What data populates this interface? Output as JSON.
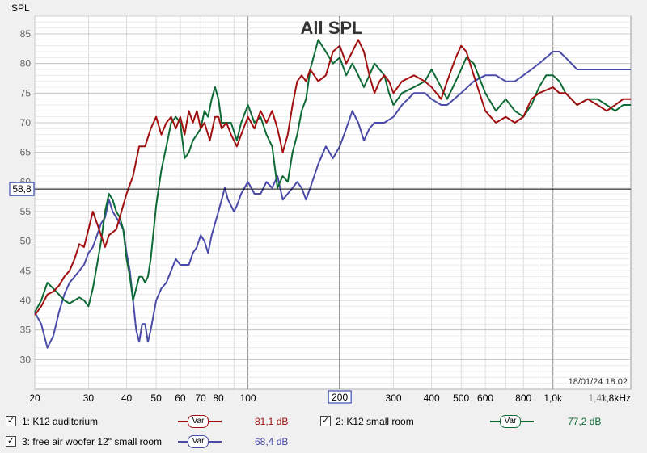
{
  "chart_data": {
    "type": "line",
    "title": "All SPL",
    "ylabel": "SPL",
    "xscale": "log",
    "xlim": [
      20,
      1800
    ],
    "ylim": [
      25,
      88
    ],
    "grid": true,
    "x_ticks": [
      {
        "v": 20,
        "label": "20"
      },
      {
        "v": 30,
        "label": "30"
      },
      {
        "v": 40,
        "label": "40"
      },
      {
        "v": 50,
        "label": "50"
      },
      {
        "v": 60,
        "label": "60"
      },
      {
        "v": 70,
        "label": "70"
      },
      {
        "v": 80,
        "label": "80"
      },
      {
        "v": 100,
        "label": "100"
      },
      {
        "v": 300,
        "label": "300"
      },
      {
        "v": 400,
        "label": "400"
      },
      {
        "v": 500,
        "label": "500"
      },
      {
        "v": 600,
        "label": "600"
      },
      {
        "v": 800,
        "label": "800"
      },
      {
        "v": 1000,
        "label": "1,0k"
      },
      {
        "v": 1400,
        "label": "1,4k",
        "muted": true
      },
      {
        "v": 1800,
        "label": "1,8kHz"
      }
    ],
    "y_ticks": [
      30,
      35,
      40,
      45,
      50,
      55,
      60,
      65,
      70,
      75,
      80,
      85
    ],
    "cursor": {
      "x": 200,
      "x_label": "200",
      "y": 58.8,
      "y_label": "58,8"
    },
    "timestamp": "18/01/24 18.02",
    "series": [
      {
        "name": "1: K12 auditorium",
        "color": "#a01010",
        "level": "81,1 dB",
        "points": [
          [
            20,
            37.5
          ],
          [
            21,
            39
          ],
          [
            22,
            41
          ],
          [
            23,
            41.5
          ],
          [
            24,
            42.5
          ],
          [
            25,
            44
          ],
          [
            26,
            45
          ],
          [
            27,
            47
          ],
          [
            28,
            49.5
          ],
          [
            29,
            49
          ],
          [
            30,
            52
          ],
          [
            31,
            55
          ],
          [
            32,
            53
          ],
          [
            33,
            51
          ],
          [
            34,
            49
          ],
          [
            35,
            51
          ],
          [
            37,
            52
          ],
          [
            40,
            58
          ],
          [
            42,
            61
          ],
          [
            44,
            66
          ],
          [
            46,
            66
          ],
          [
            48,
            69
          ],
          [
            50,
            71
          ],
          [
            52,
            68
          ],
          [
            54,
            70
          ],
          [
            56,
            71
          ],
          [
            58,
            69
          ],
          [
            60,
            71
          ],
          [
            62,
            68
          ],
          [
            64,
            72
          ],
          [
            66,
            70
          ],
          [
            68,
            72
          ],
          [
            70,
            69
          ],
          [
            72,
            70
          ],
          [
            75,
            67
          ],
          [
            78,
            71
          ],
          [
            80,
            71
          ],
          [
            82,
            69
          ],
          [
            85,
            70
          ],
          [
            88,
            68
          ],
          [
            92,
            66
          ],
          [
            95,
            68
          ],
          [
            100,
            71
          ],
          [
            105,
            69
          ],
          [
            110,
            72
          ],
          [
            115,
            70
          ],
          [
            120,
            72
          ],
          [
            125,
            69
          ],
          [
            130,
            65
          ],
          [
            135,
            68
          ],
          [
            140,
            73
          ],
          [
            145,
            77
          ],
          [
            150,
            78
          ],
          [
            155,
            77
          ],
          [
            160,
            79
          ],
          [
            170,
            77
          ],
          [
            180,
            78
          ],
          [
            190,
            82
          ],
          [
            200,
            83
          ],
          [
            210,
            80
          ],
          [
            220,
            82
          ],
          [
            230,
            84
          ],
          [
            240,
            82
          ],
          [
            250,
            78
          ],
          [
            260,
            75
          ],
          [
            270,
            77
          ],
          [
            280,
            78
          ],
          [
            290,
            77
          ],
          [
            300,
            75
          ],
          [
            320,
            77
          ],
          [
            350,
            78
          ],
          [
            380,
            77
          ],
          [
            400,
            76
          ],
          [
            430,
            74
          ],
          [
            450,
            77
          ],
          [
            480,
            81
          ],
          [
            500,
            83
          ],
          [
            520,
            82
          ],
          [
            550,
            78
          ],
          [
            600,
            72
          ],
          [
            650,
            70
          ],
          [
            700,
            71
          ],
          [
            750,
            70
          ],
          [
            800,
            71
          ],
          [
            850,
            74
          ],
          [
            900,
            75
          ],
          [
            1000,
            76
          ],
          [
            1050,
            75
          ],
          [
            1100,
            75
          ],
          [
            1200,
            73
          ],
          [
            1300,
            74
          ],
          [
            1400,
            73
          ],
          [
            1500,
            72
          ],
          [
            1600,
            73
          ],
          [
            1700,
            74
          ],
          [
            1800,
            74
          ]
        ]
      },
      {
        "name": "2: K12 small room",
        "color": "#0d6a35",
        "level": "77,2 dB",
        "points": [
          [
            20,
            38
          ],
          [
            21,
            40
          ],
          [
            22,
            43
          ],
          [
            23,
            42
          ],
          [
            24,
            41
          ],
          [
            25,
            40
          ],
          [
            26,
            39.5
          ],
          [
            27,
            40
          ],
          [
            28,
            40.5
          ],
          [
            29,
            40
          ],
          [
            30,
            39
          ],
          [
            31,
            42
          ],
          [
            32,
            46
          ],
          [
            33,
            50
          ],
          [
            34,
            55
          ],
          [
            35,
            58
          ],
          [
            36,
            57
          ],
          [
            37,
            55
          ],
          [
            38,
            54
          ],
          [
            39,
            52
          ],
          [
            40,
            47
          ],
          [
            41,
            44
          ],
          [
            42,
            40
          ],
          [
            43,
            42
          ],
          [
            44,
            44
          ],
          [
            45,
            44
          ],
          [
            46,
            43
          ],
          [
            47,
            44
          ],
          [
            48,
            47
          ],
          [
            50,
            56
          ],
          [
            52,
            62
          ],
          [
            54,
            66
          ],
          [
            56,
            70
          ],
          [
            58,
            71
          ],
          [
            60,
            70
          ],
          [
            62,
            64
          ],
          [
            64,
            65
          ],
          [
            66,
            67
          ],
          [
            68,
            68
          ],
          [
            70,
            69
          ],
          [
            72,
            72
          ],
          [
            74,
            71
          ],
          [
            76,
            74
          ],
          [
            78,
            76
          ],
          [
            80,
            74
          ],
          [
            82,
            70
          ],
          [
            85,
            70
          ],
          [
            88,
            70
          ],
          [
            92,
            67
          ],
          [
            95,
            70
          ],
          [
            100,
            73
          ],
          [
            105,
            70
          ],
          [
            110,
            71
          ],
          [
            115,
            68
          ],
          [
            120,
            66
          ],
          [
            125,
            59
          ],
          [
            130,
            61
          ],
          [
            135,
            60
          ],
          [
            140,
            65
          ],
          [
            145,
            68
          ],
          [
            150,
            72
          ],
          [
            155,
            74
          ],
          [
            160,
            79
          ],
          [
            170,
            84
          ],
          [
            180,
            82
          ],
          [
            190,
            80
          ],
          [
            200,
            81
          ],
          [
            210,
            78
          ],
          [
            220,
            80
          ],
          [
            230,
            78
          ],
          [
            240,
            76
          ],
          [
            250,
            78
          ],
          [
            260,
            80
          ],
          [
            270,
            79
          ],
          [
            280,
            78
          ],
          [
            290,
            75
          ],
          [
            300,
            73
          ],
          [
            320,
            75
          ],
          [
            350,
            76
          ],
          [
            380,
            77
          ],
          [
            400,
            79
          ],
          [
            420,
            77
          ],
          [
            450,
            74
          ],
          [
            480,
            77
          ],
          [
            500,
            79
          ],
          [
            520,
            81
          ],
          [
            550,
            80
          ],
          [
            600,
            75
          ],
          [
            650,
            72
          ],
          [
            700,
            74
          ],
          [
            750,
            72
          ],
          [
            800,
            71
          ],
          [
            850,
            73
          ],
          [
            900,
            76
          ],
          [
            950,
            78
          ],
          [
            1000,
            78
          ],
          [
            1050,
            77
          ],
          [
            1100,
            75
          ],
          [
            1200,
            73
          ],
          [
            1300,
            74
          ],
          [
            1400,
            74
          ],
          [
            1500,
            73
          ],
          [
            1600,
            72
          ],
          [
            1700,
            73
          ],
          [
            1800,
            73
          ]
        ]
      },
      {
        "name": "3: free air woofer 12\" small room",
        "color": "#4a4aa8",
        "level": "68,4 dB",
        "points": [
          [
            20,
            38
          ],
          [
            21,
            36
          ],
          [
            22,
            32
          ],
          [
            23,
            34
          ],
          [
            24,
            38
          ],
          [
            25,
            41
          ],
          [
            26,
            43
          ],
          [
            27,
            44
          ],
          [
            28,
            45
          ],
          [
            29,
            46
          ],
          [
            30,
            48
          ],
          [
            31,
            49
          ],
          [
            32,
            51
          ],
          [
            33,
            53
          ],
          [
            34,
            54
          ],
          [
            35,
            57
          ],
          [
            36,
            55
          ],
          [
            37,
            54
          ],
          [
            38,
            53
          ],
          [
            39,
            52
          ],
          [
            40,
            48
          ],
          [
            41,
            45
          ],
          [
            42,
            40
          ],
          [
            43,
            35
          ],
          [
            44,
            33
          ],
          [
            45,
            36
          ],
          [
            46,
            36
          ],
          [
            47,
            33
          ],
          [
            48,
            35
          ],
          [
            50,
            40
          ],
          [
            52,
            42
          ],
          [
            54,
            43
          ],
          [
            56,
            45
          ],
          [
            58,
            47
          ],
          [
            60,
            46
          ],
          [
            62,
            46
          ],
          [
            64,
            46
          ],
          [
            66,
            48
          ],
          [
            68,
            49
          ],
          [
            70,
            51
          ],
          [
            72,
            50
          ],
          [
            74,
            48
          ],
          [
            76,
            51
          ],
          [
            78,
            53
          ],
          [
            80,
            55
          ],
          [
            82,
            57
          ],
          [
            84,
            59
          ],
          [
            86,
            57
          ],
          [
            88,
            56
          ],
          [
            90,
            55
          ],
          [
            92,
            56
          ],
          [
            95,
            58
          ],
          [
            100,
            60
          ],
          [
            105,
            58
          ],
          [
            110,
            58
          ],
          [
            115,
            60
          ],
          [
            120,
            59
          ],
          [
            125,
            61
          ],
          [
            130,
            57
          ],
          [
            135,
            58
          ],
          [
            140,
            59
          ],
          [
            145,
            60
          ],
          [
            150,
            59
          ],
          [
            155,
            57
          ],
          [
            160,
            59
          ],
          [
            170,
            63
          ],
          [
            180,
            66
          ],
          [
            190,
            64
          ],
          [
            200,
            66
          ],
          [
            210,
            69
          ],
          [
            220,
            72
          ],
          [
            230,
            70
          ],
          [
            240,
            67
          ],
          [
            250,
            69
          ],
          [
            260,
            70
          ],
          [
            280,
            70
          ],
          [
            300,
            71
          ],
          [
            320,
            73
          ],
          [
            350,
            75
          ],
          [
            380,
            75
          ],
          [
            400,
            74
          ],
          [
            430,
            73
          ],
          [
            450,
            73
          ],
          [
            500,
            75
          ],
          [
            550,
            77
          ],
          [
            600,
            78
          ],
          [
            650,
            78
          ],
          [
            700,
            77
          ],
          [
            750,
            77
          ],
          [
            800,
            78
          ],
          [
            850,
            79
          ],
          [
            900,
            80
          ],
          [
            1000,
            82
          ],
          [
            1050,
            82
          ],
          [
            1100,
            81
          ],
          [
            1200,
            79
          ],
          [
            1300,
            79
          ],
          [
            1400,
            79
          ],
          [
            1500,
            79
          ],
          [
            1600,
            79
          ],
          [
            1700,
            79
          ],
          [
            1800,
            79
          ]
        ]
      }
    ]
  },
  "legend": {
    "var_label": "Var",
    "items": [
      {
        "label": "1: K12 auditorium",
        "color": "#a01010",
        "level": "81,1 dB",
        "checked": true
      },
      {
        "label": "2: K12 small room",
        "color": "#0d6a35",
        "level": "77,2 dB",
        "checked": true
      },
      {
        "label": "3: free air woofer 12\" small room",
        "color": "#4a4aa8",
        "level": "68,4 dB",
        "checked": true
      }
    ]
  }
}
